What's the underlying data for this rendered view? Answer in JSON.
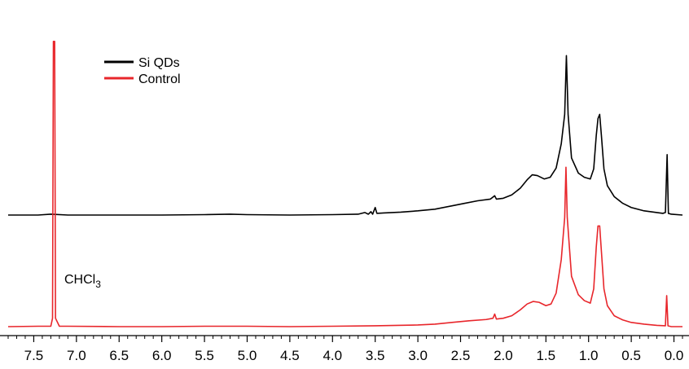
{
  "chart_data": {
    "type": "line",
    "title": "",
    "xlabel": "",
    "ylabel": "",
    "x_reversed": true,
    "xlim": [
      7.8,
      -0.1
    ],
    "x_ticks": [
      "7.5",
      "7.0",
      "6.5",
      "6.0",
      "5.5",
      "5.0",
      "4.5",
      "4.0",
      "3.5",
      "3.0",
      "2.5",
      "2.0",
      "1.5",
      "1.0",
      "0.5",
      "0.0"
    ],
    "grid": false,
    "legend": {
      "placement": "top-left",
      "entries": [
        {
          "label": "Si QDs",
          "color": "#000000"
        },
        {
          "label": "Control",
          "color": "#e8262b"
        }
      ]
    },
    "annotations": [
      {
        "text": "CHCl",
        "subscript": "3",
        "x": 7.26
      }
    ],
    "series": [
      {
        "name": "Si QDs",
        "color": "#000000",
        "points": [
          [
            7.8,
            0.0
          ],
          [
            7.45,
            0.0
          ],
          [
            7.3,
            0.01
          ],
          [
            7.1,
            0.0
          ],
          [
            6.5,
            0.0
          ],
          [
            6.0,
            0.0
          ],
          [
            5.5,
            0.005
          ],
          [
            5.2,
            0.01
          ],
          [
            5.0,
            0.005
          ],
          [
            4.5,
            0.0
          ],
          [
            4.0,
            0.005
          ],
          [
            3.7,
            0.01
          ],
          [
            3.62,
            0.03
          ],
          [
            3.58,
            0.01
          ],
          [
            3.55,
            0.04
          ],
          [
            3.53,
            0.01
          ],
          [
            3.5,
            0.09
          ],
          [
            3.48,
            0.02
          ],
          [
            3.4,
            0.025
          ],
          [
            3.2,
            0.035
          ],
          [
            3.0,
            0.05
          ],
          [
            2.8,
            0.07
          ],
          [
            2.6,
            0.11
          ],
          [
            2.45,
            0.14
          ],
          [
            2.3,
            0.17
          ],
          [
            2.15,
            0.19
          ],
          [
            2.1,
            0.23
          ],
          [
            2.08,
            0.19
          ],
          [
            2.0,
            0.2
          ],
          [
            1.9,
            0.24
          ],
          [
            1.8,
            0.32
          ],
          [
            1.72,
            0.42
          ],
          [
            1.66,
            0.48
          ],
          [
            1.6,
            0.47
          ],
          [
            1.52,
            0.43
          ],
          [
            1.45,
            0.45
          ],
          [
            1.38,
            0.56
          ],
          [
            1.32,
            0.85
          ],
          [
            1.28,
            1.2
          ],
          [
            1.26,
            1.9
          ],
          [
            1.24,
            1.2
          ],
          [
            1.2,
            0.68
          ],
          [
            1.12,
            0.5
          ],
          [
            1.05,
            0.45
          ],
          [
            0.98,
            0.43
          ],
          [
            0.94,
            0.55
          ],
          [
            0.91,
            0.95
          ],
          [
            0.89,
            1.15
          ],
          [
            0.87,
            1.2
          ],
          [
            0.85,
            0.95
          ],
          [
            0.82,
            0.55
          ],
          [
            0.78,
            0.35
          ],
          [
            0.7,
            0.22
          ],
          [
            0.6,
            0.14
          ],
          [
            0.5,
            0.09
          ],
          [
            0.35,
            0.05
          ],
          [
            0.2,
            0.03
          ],
          [
            0.13,
            0.02
          ],
          [
            0.1,
            0.03
          ],
          [
            0.08,
            0.72
          ],
          [
            0.065,
            0.02
          ],
          [
            0.03,
            0.01
          ],
          [
            -0.1,
            0.0
          ]
        ]
      },
      {
        "name": "Control",
        "color": "#e8262b",
        "points": [
          [
            7.8,
            0.0
          ],
          [
            7.45,
            0.005
          ],
          [
            7.3,
            0.005
          ],
          [
            7.28,
            0.1
          ],
          [
            7.27,
            3.4
          ],
          [
            7.255,
            3.4
          ],
          [
            7.245,
            0.1
          ],
          [
            7.2,
            0.005
          ],
          [
            7.1,
            0.005
          ],
          [
            6.5,
            0.0
          ],
          [
            6.0,
            0.0
          ],
          [
            5.5,
            0.005
          ],
          [
            5.0,
            0.005
          ],
          [
            4.5,
            0.0
          ],
          [
            4.0,
            0.005
          ],
          [
            3.5,
            0.01
          ],
          [
            3.0,
            0.02
          ],
          [
            2.8,
            0.03
          ],
          [
            2.6,
            0.05
          ],
          [
            2.4,
            0.07
          ],
          [
            2.2,
            0.085
          ],
          [
            2.12,
            0.1
          ],
          [
            2.1,
            0.15
          ],
          [
            2.08,
            0.09
          ],
          [
            2.0,
            0.1
          ],
          [
            1.9,
            0.13
          ],
          [
            1.8,
            0.2
          ],
          [
            1.72,
            0.27
          ],
          [
            1.65,
            0.3
          ],
          [
            1.58,
            0.29
          ],
          [
            1.5,
            0.25
          ],
          [
            1.44,
            0.27
          ],
          [
            1.38,
            0.4
          ],
          [
            1.32,
            0.8
          ],
          [
            1.28,
            1.3
          ],
          [
            1.265,
            1.9
          ],
          [
            1.25,
            1.3
          ],
          [
            1.2,
            0.6
          ],
          [
            1.12,
            0.38
          ],
          [
            1.05,
            0.31
          ],
          [
            0.98,
            0.28
          ],
          [
            0.94,
            0.45
          ],
          [
            0.91,
            0.95
          ],
          [
            0.89,
            1.2
          ],
          [
            0.87,
            1.2
          ],
          [
            0.85,
            0.9
          ],
          [
            0.82,
            0.45
          ],
          [
            0.78,
            0.25
          ],
          [
            0.7,
            0.13
          ],
          [
            0.6,
            0.08
          ],
          [
            0.5,
            0.05
          ],
          [
            0.35,
            0.03
          ],
          [
            0.2,
            0.015
          ],
          [
            0.1,
            0.01
          ],
          [
            0.085,
            0.37
          ],
          [
            0.07,
            0.01
          ],
          [
            0.03,
            0.0
          ],
          [
            -0.1,
            0.0
          ]
        ]
      }
    ]
  }
}
